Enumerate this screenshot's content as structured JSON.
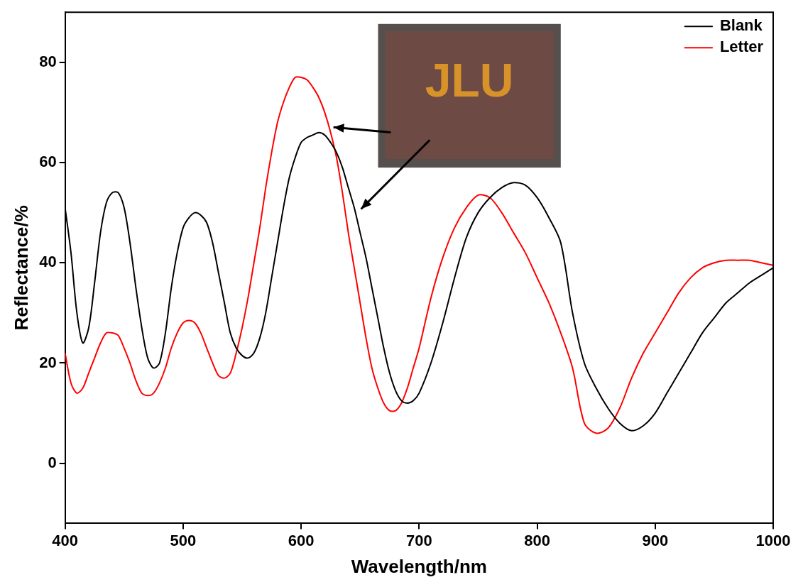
{
  "chart_data": {
    "type": "line",
    "x_label": "Wavelength/nm",
    "y_label": "Reflectance/%",
    "annotations": [
      "JLU"
    ],
    "x": [
      400,
      405,
      410,
      415,
      420,
      425,
      430,
      435,
      440,
      445,
      450,
      455,
      460,
      465,
      470,
      475,
      480,
      485,
      490,
      495,
      500,
      505,
      510,
      515,
      520,
      525,
      530,
      535,
      540,
      545,
      550,
      555,
      560,
      565,
      570,
      575,
      580,
      585,
      590,
      595,
      600,
      605,
      610,
      615,
      620,
      625,
      630,
      635,
      640,
      645,
      650,
      655,
      660,
      665,
      670,
      675,
      680,
      685,
      690,
      695,
      700,
      710,
      720,
      730,
      740,
      750,
      760,
      770,
      780,
      790,
      800,
      810,
      820,
      830,
      840,
      850,
      860,
      870,
      880,
      890,
      900,
      910,
      920,
      930,
      940,
      950,
      960,
      970,
      980,
      990,
      1000
    ],
    "series": [
      {
        "name": "Blank",
        "color": "#000000",
        "values": [
          51,
          42,
          30,
          24,
          27,
          36,
          46,
          52,
          54,
          54,
          51,
          44,
          35,
          27,
          21,
          19,
          20,
          26,
          35,
          42,
          47,
          49,
          50,
          49.5,
          48,
          44,
          38,
          32,
          26,
          23,
          21.5,
          21,
          22,
          25,
          30,
          37,
          44,
          51,
          57,
          61,
          64,
          65,
          65.5,
          66,
          65.5,
          64,
          62,
          59,
          55,
          51,
          46,
          41,
          35,
          29,
          23,
          18,
          14.5,
          12.5,
          12,
          12.5,
          14,
          20,
          28,
          37,
          45,
          50,
          53,
          55,
          56,
          55.5,
          53,
          49,
          44,
          30,
          20,
          15,
          11,
          8,
          6.5,
          7.5,
          10,
          14,
          18,
          22,
          26,
          29,
          32,
          34,
          36,
          37.5,
          39
        ]
      },
      {
        "name": "Letter",
        "color": "#ff0000",
        "values": [
          22,
          16,
          14,
          15,
          18,
          21,
          24,
          26,
          26,
          25.5,
          23,
          20,
          16.5,
          14,
          13.5,
          14,
          16,
          19,
          23,
          26,
          28,
          28.5,
          28,
          26,
          23,
          20,
          17.5,
          17,
          18,
          22,
          27,
          33,
          40,
          47,
          55,
          62,
          68,
          72,
          75,
          77,
          77,
          76.5,
          75,
          73,
          70,
          66,
          61,
          54,
          46,
          39,
          32,
          25,
          19,
          15,
          12,
          10.5,
          10.5,
          12,
          15,
          19,
          23,
          33,
          41,
          47,
          51,
          53.5,
          53,
          50,
          46,
          42,
          37,
          32,
          26,
          19,
          8,
          6,
          7,
          11,
          17,
          22,
          26,
          30,
          34,
          37,
          39,
          40,
          40.5,
          40.5,
          40.5,
          40,
          39.5
        ]
      }
    ],
    "xlim": [
      400,
      1000
    ],
    "xticks": [
      400,
      500,
      600,
      700,
      800,
      900,
      1000
    ],
    "ylim": [
      -12,
      90
    ],
    "yticks": [
      0,
      20,
      40,
      60,
      80
    ],
    "grid": false,
    "legend": "upper right"
  }
}
